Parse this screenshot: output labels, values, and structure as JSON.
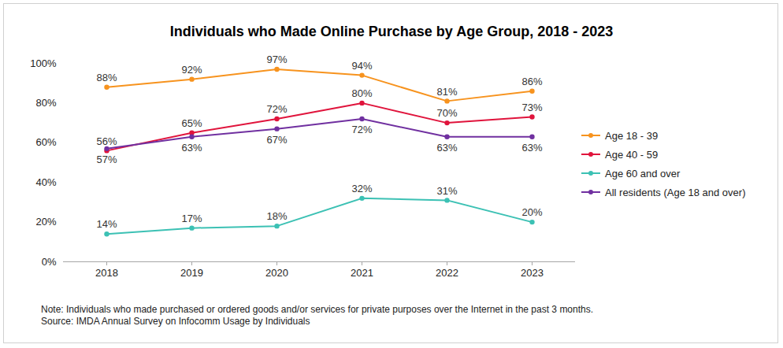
{
  "chart_data": {
    "type": "line",
    "title": "Individuals who Made Online Purchase by Age Group, 2018 - 2023",
    "categories": [
      "2018",
      "2019",
      "2020",
      "2021",
      "2022",
      "2023"
    ],
    "series": [
      {
        "name": "Age 18 - 39",
        "color": "#f7931e",
        "values": [
          88,
          92,
          97,
          94,
          81,
          86
        ],
        "value_labels": [
          "88%",
          "92%",
          "97%",
          "94%",
          "81%",
          "86%"
        ]
      },
      {
        "name": "Age 40 - 59",
        "color": "#e0143c",
        "values": [
          56,
          65,
          72,
          80,
          70,
          73
        ],
        "value_labels": [
          "56%",
          "65%",
          "72%",
          "80%",
          "70%",
          "73%"
        ]
      },
      {
        "name": "Age 60 and over",
        "color": "#3cc1b4",
        "values": [
          14,
          17,
          18,
          32,
          31,
          20
        ],
        "value_labels": [
          "14%",
          "17%",
          "18%",
          "32%",
          "31%",
          "20%"
        ]
      },
      {
        "name": "All residents (Age 18 and over)",
        "color": "#7030a0",
        "values": [
          57,
          63,
          67,
          72,
          63,
          63
        ],
        "value_labels": [
          "57%",
          "63%",
          "67%",
          "72%",
          "63%",
          "63%"
        ]
      }
    ],
    "ylim": [
      0,
      100
    ],
    "yticks": [
      {
        "value": 0,
        "label": "0%"
      },
      {
        "value": 20,
        "label": "20%"
      },
      {
        "value": 40,
        "label": "40%"
      },
      {
        "value": 60,
        "label": "60%"
      },
      {
        "value": 80,
        "label": "80%"
      },
      {
        "value": 100,
        "label": "100%"
      }
    ],
    "grid": false,
    "legend": "right",
    "data_labels": true,
    "marker": "circle",
    "notes": [
      "Note: Individuals who made purchased or ordered goods and/or services for private purposes over the Internet in the past 3 months.",
      "Source: IMDA Annual Survey on Infocomm Usage by Individuals"
    ]
  }
}
